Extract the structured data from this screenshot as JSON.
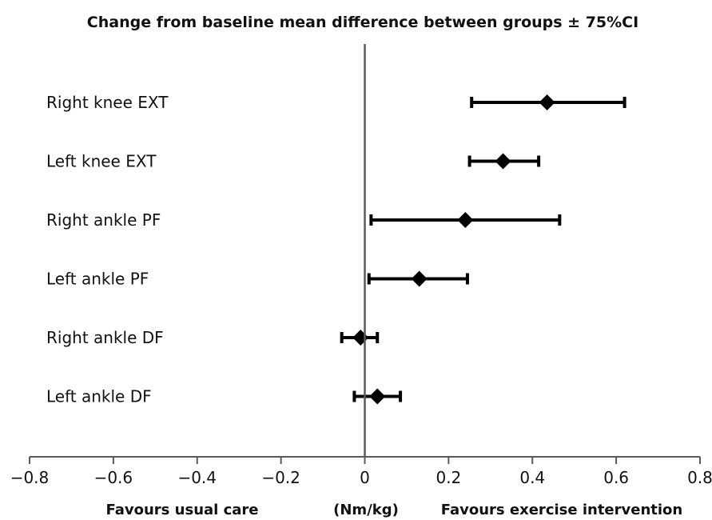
{
  "chart_data": {
    "type": "forest",
    "title": "Change from baseline mean difference between groups ± 75%CI",
    "xlim": [
      -0.8,
      0.8
    ],
    "xticks": [
      -0.8,
      -0.6,
      -0.4,
      -0.2,
      0,
      0.2,
      0.4,
      0.6,
      0.8
    ],
    "xtick_labels": [
      "−0.8",
      "−0.6",
      "−0.4",
      "−0.2",
      "0",
      "0.2",
      "0.4",
      "0.6",
      "0.8"
    ],
    "reference_line": 0,
    "grid": false,
    "rows": [
      {
        "label": "Right knee EXT",
        "estimate": 0.435,
        "lower": 0.255,
        "upper": 0.62
      },
      {
        "label": "Left knee EXT",
        "estimate": 0.33,
        "lower": 0.25,
        "upper": 0.415
      },
      {
        "label": "Right ankle PF",
        "estimate": 0.24,
        "lower": 0.015,
        "upper": 0.465
      },
      {
        "label": "Left ankle PF",
        "estimate": 0.13,
        "lower": 0.01,
        "upper": 0.245
      },
      {
        "label": "Right ankle DF",
        "estimate": -0.01,
        "lower": -0.055,
        "upper": 0.03
      },
      {
        "label": "Left ankle DF",
        "estimate": 0.03,
        "lower": -0.025,
        "upper": 0.085
      }
    ],
    "footer": {
      "left": "Favours usual care",
      "center": "(Nm/kg)",
      "right": "Favours exercise intervention"
    },
    "colors": {
      "marks": "#000000",
      "axis": "#595959",
      "reference": "#595959"
    }
  }
}
